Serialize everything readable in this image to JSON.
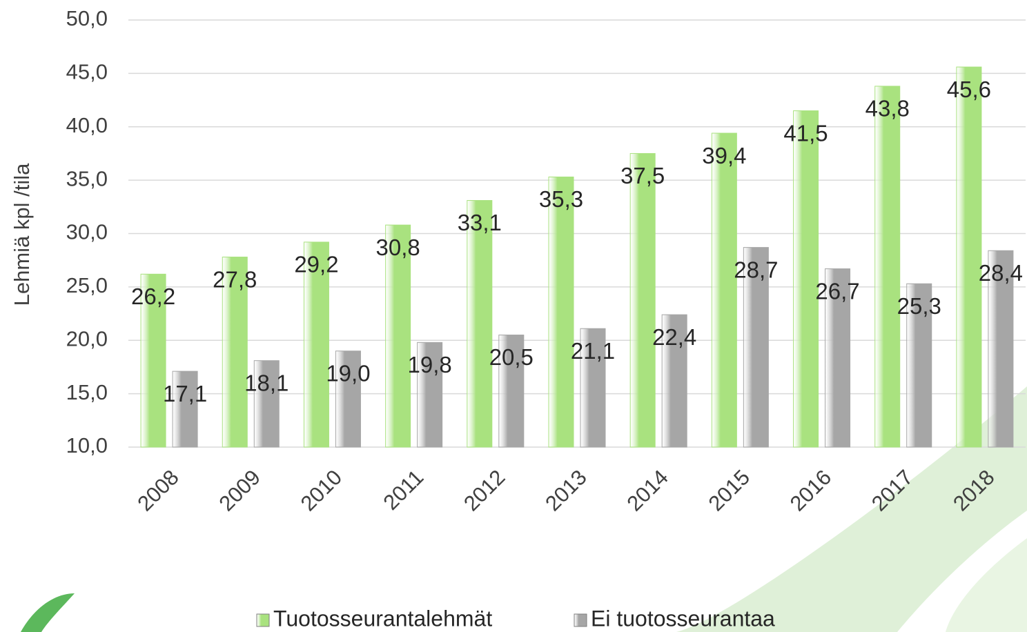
{
  "chart_data": {
    "type": "bar",
    "y_label": "Lehmiä kpl /tila",
    "categories": [
      "2008",
      "2009",
      "2010",
      "2011",
      "2012",
      "2013",
      "2014",
      "2015",
      "2016",
      "2017",
      "2018"
    ],
    "series": [
      {
        "name": "Tuotosseurantalehmät",
        "color": "#a9e27f",
        "values": [
          26.2,
          27.8,
          29.2,
          30.8,
          33.1,
          35.3,
          37.5,
          39.4,
          41.5,
          43.8,
          45.6
        ],
        "value_labels": [
          "26,2",
          "27,8",
          "29,2",
          "30,8",
          "33,1",
          "35,3",
          "37,5",
          "39,4",
          "41,5",
          "43,8",
          "45,6"
        ]
      },
      {
        "name": "Ei tuotosseurantaa",
        "color": "#a6a6a6",
        "values": [
          17.1,
          18.1,
          19.0,
          19.8,
          20.5,
          21.1,
          22.4,
          28.7,
          26.7,
          25.3,
          28.4
        ],
        "value_labels": [
          "17,1",
          "18,1",
          "19,0",
          "19,8",
          "20,5",
          "21,1",
          "22,4",
          "28,7",
          "26,7",
          "25,3",
          "28,4"
        ]
      }
    ],
    "ylim": [
      10,
      50
    ],
    "yticks": [
      {
        "value": 10,
        "label": "10,0"
      },
      {
        "value": 15,
        "label": "15,0"
      },
      {
        "value": 20,
        "label": "20,0"
      },
      {
        "value": 25,
        "label": "25,0"
      },
      {
        "value": 30,
        "label": "30,0"
      },
      {
        "value": 35,
        "label": "35,0"
      },
      {
        "value": 40,
        "label": "40,0"
      },
      {
        "value": 45,
        "label": "45,0"
      },
      {
        "value": 50,
        "label": "50,0"
      }
    ],
    "grid": true,
    "legend": "bottom"
  }
}
